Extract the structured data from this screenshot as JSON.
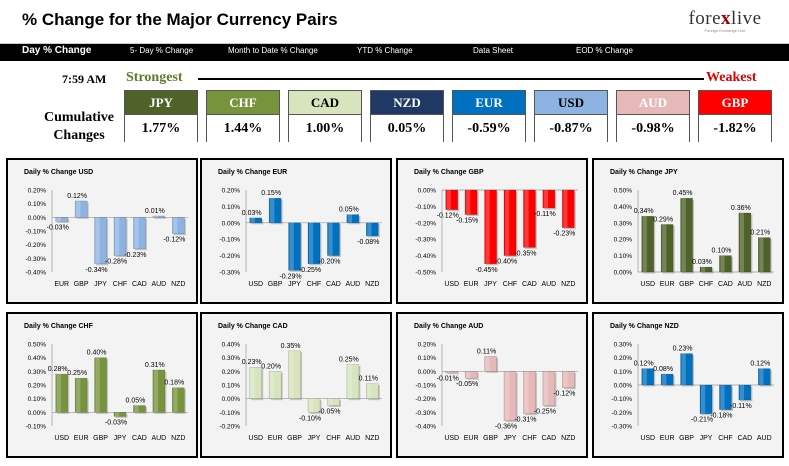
{
  "header": {
    "title": "% Change for the Major Currency Pairs",
    "logo_main_1": "fore",
    "logo_x": "x",
    "logo_main_2": "live",
    "logo_sub": "Foreign Exchange Live"
  },
  "nav": {
    "items": [
      "Day % Change",
      "5- Day % Change",
      "Month to Date % Change",
      "YTD % Change",
      "Data Sheet",
      "EOD % Change"
    ]
  },
  "strength_bar": {
    "time": "7:59 AM",
    "strongest_label": "Strongest",
    "weakest_label": "Weakest",
    "cumulative_label": "Cumulative Changes",
    "currencies": [
      {
        "code": "JPY",
        "value": "1.77%",
        "bg": "#4f6228",
        "fg": "#ffffff"
      },
      {
        "code": "CHF",
        "value": "1.44%",
        "bg": "#77933c",
        "fg": "#ffffff"
      },
      {
        "code": "CAD",
        "value": "1.00%",
        "bg": "#d7e4bd",
        "fg": "#000000"
      },
      {
        "code": "NZD",
        "value": "0.05%",
        "bg": "#1f3864",
        "fg": "#ffffff"
      },
      {
        "code": "EUR",
        "value": "-0.59%",
        "bg": "#0070c0",
        "fg": "#ffffff"
      },
      {
        "code": "USD",
        "value": "-0.87%",
        "bg": "#8db3e2",
        "fg": "#000000"
      },
      {
        "code": "AUD",
        "value": "-0.98%",
        "bg": "#e6b9b8",
        "fg": "#ffffff"
      },
      {
        "code": "GBP",
        "value": "-1.82%",
        "bg": "#ff0000",
        "fg": "#ffffff"
      }
    ]
  },
  "chart_data": [
    {
      "type": "bar",
      "title": "Daily % Change USD",
      "color": "#8db3e2",
      "categories": [
        "EUR",
        "GBP",
        "JPY",
        "CHF",
        "CAD",
        "AUD",
        "NZD"
      ],
      "values": [
        -0.03,
        0.12,
        -0.34,
        -0.28,
        -0.23,
        0.01,
        -0.12
      ],
      "labels": [
        "-0.03%",
        "0.12%",
        "-0.34%",
        "-0.28%",
        "-0.23%",
        "0.01%",
        "-0.12%"
      ],
      "ylim": [
        -0.4,
        0.2
      ],
      "ticks": [
        0.2,
        0.1,
        0.0,
        -0.1,
        -0.2,
        -0.3,
        -0.4
      ],
      "tick_labels": [
        "0.20%",
        "0.10%",
        "0.00%",
        "-0.10%",
        "-0.20%",
        "-0.30%",
        "-0.40%"
      ],
      "xlabel_pos": "bottom"
    },
    {
      "type": "bar",
      "title": "Daily % Change EUR",
      "color": "#0070c0",
      "categories": [
        "USD",
        "GBP",
        "JPY",
        "CHF",
        "CAD",
        "AUD",
        "NZD"
      ],
      "values": [
        0.03,
        0.15,
        -0.29,
        -0.25,
        -0.2,
        0.05,
        -0.08
      ],
      "labels": [
        "0.03%",
        "0.15%",
        "-0.29%",
        "-0.25%",
        "-0.20%",
        "0.05%",
        "-0.08%"
      ],
      "ylim": [
        -0.3,
        0.2
      ],
      "ticks": [
        0.2,
        0.1,
        0.0,
        -0.1,
        -0.2,
        -0.3
      ],
      "tick_labels": [
        "0.20%",
        "0.10%",
        "0.00%",
        "-0.10%",
        "-0.20%",
        "-0.30%"
      ],
      "xlabel_pos": "bottom"
    },
    {
      "type": "bar",
      "title": "Daily % Change GBP",
      "color": "#ff0000",
      "categories": [
        "USD",
        "EUR",
        "JPY",
        "CHF",
        "CAD",
        "AUD",
        "NZD"
      ],
      "values": [
        -0.12,
        -0.15,
        -0.45,
        -0.4,
        -0.35,
        -0.11,
        -0.23
      ],
      "labels": [
        "-0.12%",
        "-0.15%",
        "-0.45%",
        "-0.40%",
        "-0.35%",
        "-0.11%",
        "-0.23%"
      ],
      "ylim": [
        -0.5,
        0.0
      ],
      "ticks": [
        0.0,
        -0.1,
        -0.2,
        -0.3,
        -0.4,
        -0.5
      ],
      "tick_labels": [
        "0.00%",
        "-0.10%",
        "-0.20%",
        "-0.30%",
        "-0.40%",
        "-0.50%"
      ],
      "xlabel_pos": "bottom"
    },
    {
      "type": "bar",
      "title": "Daily % Change JPY",
      "color": "#4f6228",
      "categories": [
        "USD",
        "EUR",
        "GBP",
        "CHF",
        "CAD",
        "AUD",
        "NZD"
      ],
      "values": [
        0.34,
        0.29,
        0.45,
        0.03,
        0.1,
        0.36,
        0.21
      ],
      "labels": [
        "0.34%",
        "0.29%",
        "0.45%",
        "0.03%",
        "0.10%",
        "0.36%",
        "0.21%"
      ],
      "ylim": [
        0.0,
        0.5
      ],
      "ticks": [
        0.5,
        0.4,
        0.3,
        0.2,
        0.1,
        0.0
      ],
      "tick_labels": [
        "0.50%",
        "0.40%",
        "0.30%",
        "0.20%",
        "0.10%",
        "0.00%"
      ],
      "xlabel_pos": "bottom"
    },
    {
      "type": "bar",
      "title": "Daily % Change CHF",
      "color": "#77933c",
      "categories": [
        "USD",
        "EUR",
        "GBP",
        "JPY",
        "CAD",
        "AUD",
        "NZD"
      ],
      "values": [
        0.28,
        0.25,
        0.4,
        -0.03,
        0.05,
        0.31,
        0.18
      ],
      "labels": [
        "0.28%",
        "0.25%",
        "0.40%",
        "-0.03%",
        "0.05%",
        "0.31%",
        "0.18%"
      ],
      "ylim": [
        -0.1,
        0.5
      ],
      "ticks": [
        0.5,
        0.4,
        0.3,
        0.2,
        0.1,
        0.0,
        -0.1
      ],
      "tick_labels": [
        "0.50%",
        "0.40%",
        "0.30%",
        "0.20%",
        "0.10%",
        "0.00%",
        "-0.10%"
      ],
      "xlabel_pos": "bottom"
    },
    {
      "type": "bar",
      "title": "Daily % Change CAD",
      "color": "#d7e4bd",
      "categories": [
        "USD",
        "EUR",
        "GBP",
        "JPY",
        "CHF",
        "AUD",
        "NZD"
      ],
      "values": [
        0.23,
        0.2,
        0.35,
        -0.1,
        -0.05,
        0.25,
        0.11
      ],
      "labels": [
        "0.23%",
        "0.20%",
        "0.35%",
        "-0.10%",
        "-0.05%",
        "0.25%",
        "0.11%"
      ],
      "ylim": [
        -0.2,
        0.4
      ],
      "ticks": [
        0.4,
        0.3,
        0.2,
        0.1,
        0.0,
        -0.1,
        -0.2
      ],
      "tick_labels": [
        "0.40%",
        "0.30%",
        "0.20%",
        "0.10%",
        "0.00%",
        "-0.10%",
        "-0.20%"
      ],
      "xlabel_pos": "bottom"
    },
    {
      "type": "bar",
      "title": "Daily % Change AUD",
      "color": "#e6b9b8",
      "categories": [
        "USD",
        "EUR",
        "GBP",
        "JPY",
        "CHF",
        "CAD",
        "NZD"
      ],
      "values": [
        -0.01,
        -0.05,
        0.11,
        -0.36,
        -0.31,
        -0.25,
        -0.12
      ],
      "labels": [
        "-0.01%",
        "-0.05%",
        "0.11%",
        "-0.36%",
        "-0.31%",
        "-0.25%",
        "-0.12%"
      ],
      "ylim": [
        -0.4,
        0.2
      ],
      "ticks": [
        0.2,
        0.1,
        0.0,
        -0.1,
        -0.2,
        -0.3,
        -0.4
      ],
      "tick_labels": [
        "0.20%",
        "0.10%",
        "0.00%",
        "-0.10%",
        "-0.20%",
        "-0.30%",
        "-0.40%"
      ],
      "xlabel_pos": "bottom"
    },
    {
      "type": "bar",
      "title": "Daily % Change NZD",
      "color": "#0070c0",
      "categories": [
        "USD",
        "EUR",
        "GBP",
        "JPY",
        "CHF",
        "CAD",
        "AUD"
      ],
      "values": [
        0.12,
        0.08,
        0.23,
        -0.21,
        -0.18,
        -0.11,
        0.12
      ],
      "labels": [
        "0.12%",
        "0.08%",
        "0.23%",
        "-0.21%",
        "-0.18%",
        "-0.11%",
        "0.12%"
      ],
      "ylim": [
        -0.3,
        0.3
      ],
      "ticks": [
        0.3,
        0.2,
        0.1,
        0.0,
        -0.1,
        -0.2,
        -0.3
      ],
      "tick_labels": [
        "0.30%",
        "0.20%",
        "0.10%",
        "0.00%",
        "-0.10%",
        "-0.20%",
        "-0.30%"
      ],
      "xlabel_pos": "bottom"
    }
  ]
}
